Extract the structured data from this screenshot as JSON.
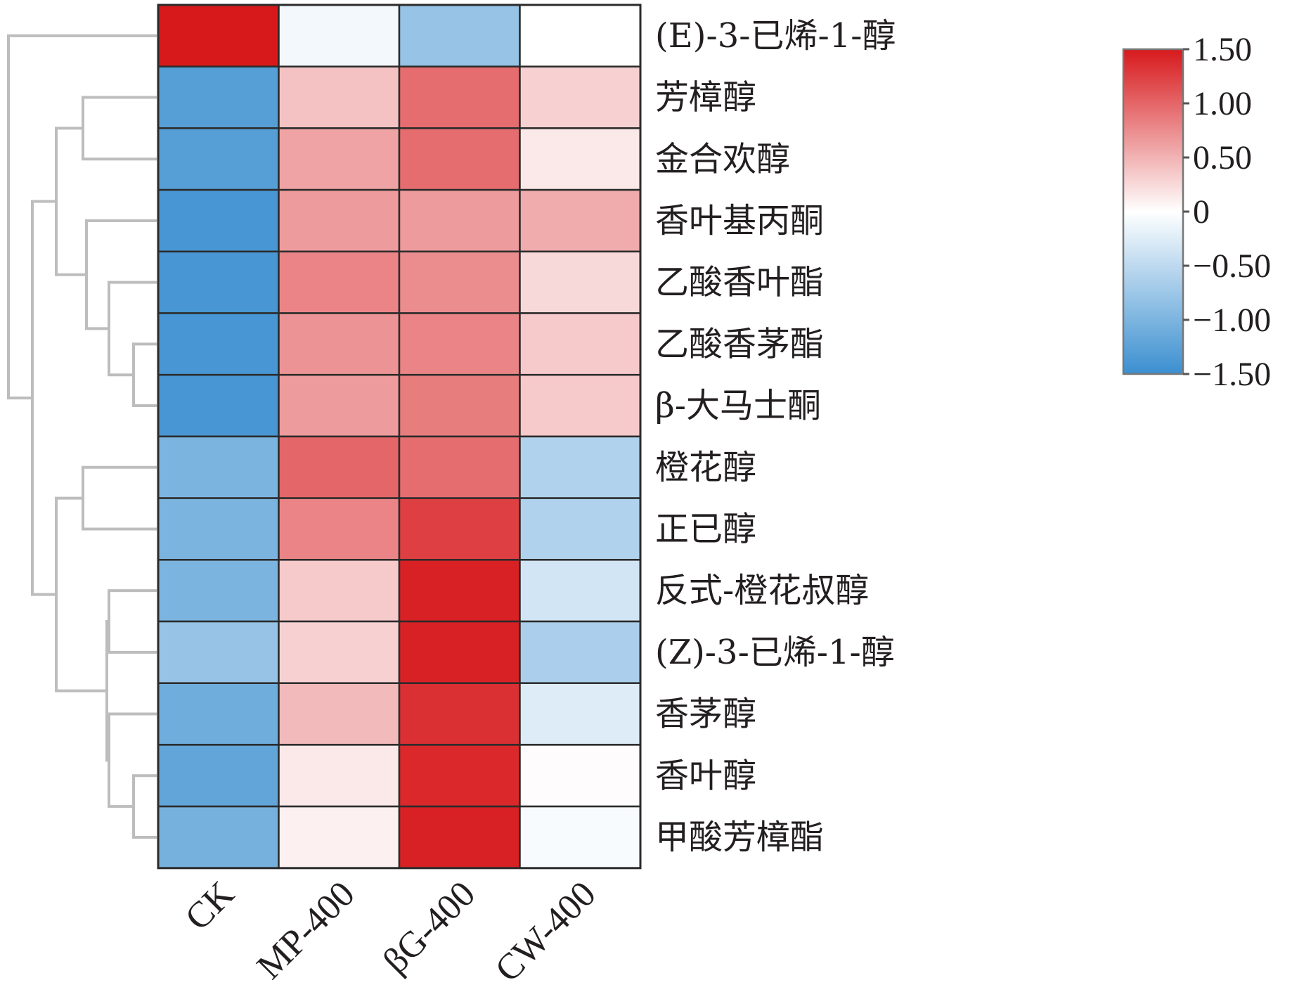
{
  "chart_data": {
    "type": "heatmap",
    "title": "",
    "columns": [
      "CK",
      "MP-400",
      "βG-400",
      "CW-400"
    ],
    "rows": [
      "(E)-3-已烯-1-醇",
      "芳樟醇",
      "金合欢醇",
      "香叶基丙酮",
      "乙酸香叶酯",
      "乙酸香茅酯",
      "β-大马士酮",
      "橙花醇",
      "正已醇",
      "反式-橙花叔醇",
      "(Z)-3-已烯-1-醇",
      "香茅醇",
      "香叶醇",
      "甲酸芳樟酯"
    ],
    "values": [
      [
        1.5,
        -0.1,
        -0.8,
        0.0
      ],
      [
        -1.3,
        0.4,
        0.95,
        0.3
      ],
      [
        -1.3,
        0.6,
        0.95,
        0.15
      ],
      [
        -1.4,
        0.65,
        0.65,
        0.55
      ],
      [
        -1.4,
        0.8,
        0.75,
        0.25
      ],
      [
        -1.4,
        0.7,
        0.8,
        0.35
      ],
      [
        -1.4,
        0.65,
        0.85,
        0.35
      ],
      [
        -1.0,
        1.0,
        0.95,
        -0.6
      ],
      [
        -1.0,
        0.8,
        1.25,
        -0.6
      ],
      [
        -1.0,
        0.35,
        1.45,
        -0.35
      ],
      [
        -0.8,
        0.3,
        1.45,
        -0.65
      ],
      [
        -1.1,
        0.45,
        1.35,
        -0.25
      ],
      [
        -1.2,
        0.15,
        1.4,
        0.02
      ],
      [
        -1.05,
        0.1,
        1.45,
        -0.05
      ]
    ],
    "colorbar": {
      "min": -1.5,
      "max": 1.5,
      "ticks": [
        1.5,
        1.0,
        0.5,
        0,
        -0.5,
        -1.0,
        -1.5
      ],
      "tick_labels": [
        "1.50",
        "1.00",
        "0.50",
        "0",
        "−0.50",
        "−1.00",
        "−1.50"
      ],
      "colors": {
        "low": "#3b8fd0",
        "mid": "#ffffff",
        "high": "#d7191c"
      }
    },
    "row_dendrogram": true,
    "legend_position": "right"
  }
}
